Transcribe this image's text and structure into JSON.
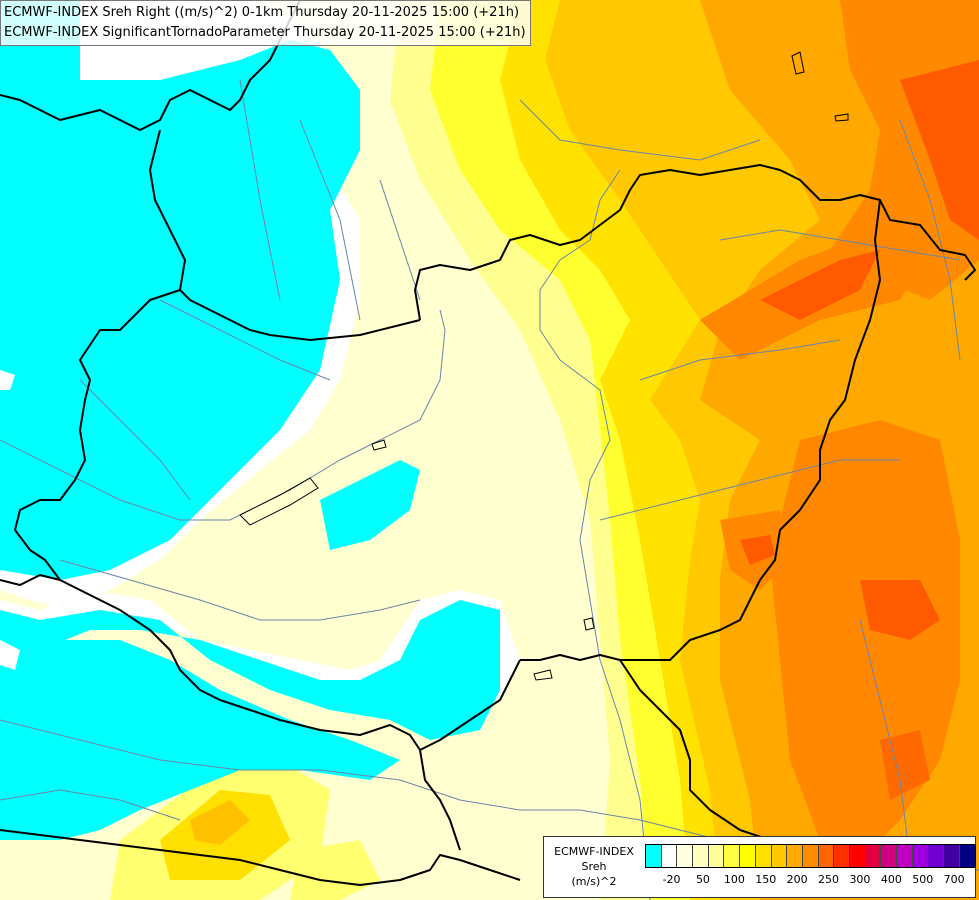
{
  "header": {
    "line1": "ECMWF-INDEX Sreh Right ((m/s)^2) 0-1km Thursday 20-11-2025 15:00 (+21h)",
    "line2": "ECMWF-INDEX SignificantTornadoParameter Thursday 20-11-2025 15:00 (+21h)"
  },
  "legend": {
    "model": "ECMWF-INDEX",
    "parameter": "Sreh",
    "unit": "(m/s)^2",
    "colors": [
      "#00ffff",
      "#ffffff",
      "#ffffe0",
      "#ffffc0",
      "#ffff99",
      "#ffff40",
      "#ffff00",
      "#ffe000",
      "#ffc800",
      "#ffaa00",
      "#ff8c00",
      "#ff6400",
      "#ff3000",
      "#ff0000",
      "#e00040",
      "#d00080",
      "#c000c0",
      "#a000e0",
      "#7000d0",
      "#4000a0",
      "#000080"
    ],
    "ticks": [
      {
        "label": "-20",
        "index": 1
      },
      {
        "label": "50",
        "index": 3
      },
      {
        "label": "100",
        "index": 5
      },
      {
        "label": "150",
        "index": 7
      },
      {
        "label": "200",
        "index": 9
      },
      {
        "label": "250",
        "index": 11
      },
      {
        "label": "300",
        "index": 13
      },
      {
        "label": "400",
        "index": 15
      },
      {
        "label": "500",
        "index": 17
      },
      {
        "label": "700",
        "index": 19
      }
    ]
  },
  "map": {
    "field_colors": {
      "cyan": "#00ffff",
      "white": "#ffffff",
      "cream": "#ffffd0",
      "light_yellow": "#ffffa0",
      "yellow": "#ffff00",
      "gold": "#ffe000",
      "amber": "#ffc000",
      "orange": "#ffa000",
      "dark_orange": "#ff8000",
      "red_orange": "#ff5000"
    },
    "border_color": "#000000",
    "river_color": "#6a86a8"
  }
}
